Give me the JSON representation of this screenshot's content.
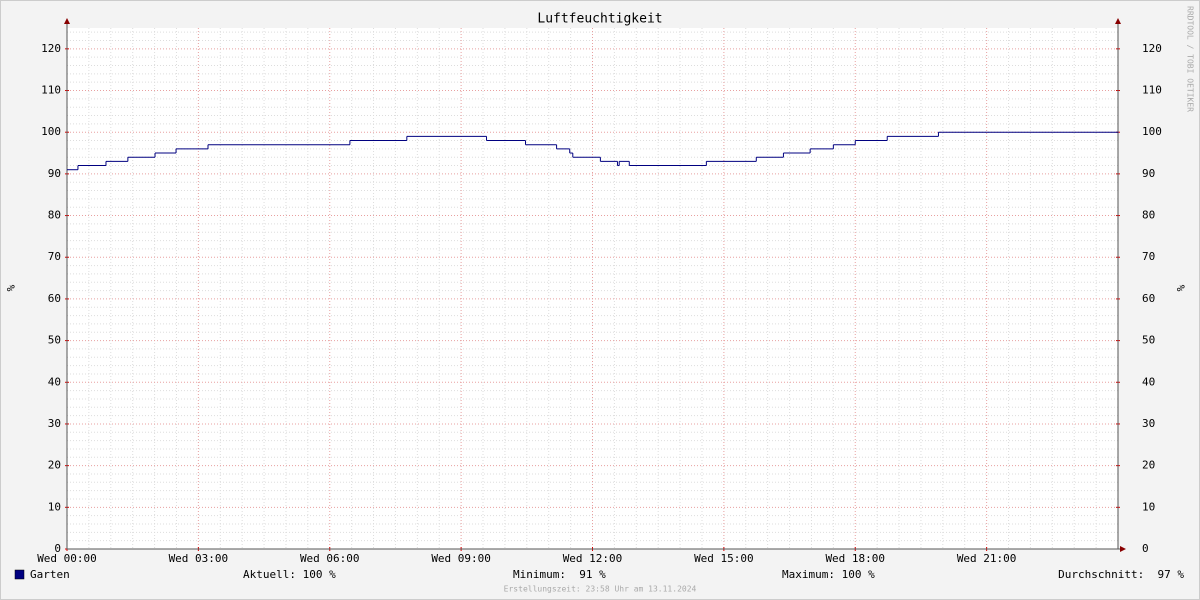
{
  "chart_data": {
    "type": "line",
    "title": "Luftfeuchtigkeit",
    "y_label": "%",
    "x": [
      0,
      0.25,
      0.89,
      1.39,
      2.01,
      2.49,
      3.22,
      6.46,
      7.76,
      9.58,
      10.47,
      11.18,
      11.48,
      11.55,
      12.18,
      12.57,
      12.61,
      12.84,
      14.6,
      15.74,
      16.36,
      16.97,
      17.5,
      18.0,
      18.73,
      19.9,
      24
    ],
    "series": [
      {
        "name": "Garten",
        "color": "#000080",
        "values": [
          91,
          92,
          93,
          94,
          95,
          96,
          97,
          98,
          99,
          98,
          97,
          96,
          95,
          94,
          93,
          92,
          93,
          92,
          93,
          94,
          95,
          96,
          97,
          98,
          99,
          100,
          100
        ]
      }
    ],
    "xlim": [
      0,
      24
    ],
    "xticks": [
      {
        "value": 0,
        "label": "Wed 00:00"
      },
      {
        "value": 3,
        "label": "Wed 03:00"
      },
      {
        "value": 6,
        "label": "Wed 06:00"
      },
      {
        "value": 9,
        "label": "Wed 09:00"
      },
      {
        "value": 12,
        "label": "Wed 12:00"
      },
      {
        "value": 15,
        "label": "Wed 15:00"
      },
      {
        "value": 18,
        "label": "Wed 18:00"
      },
      {
        "value": 21,
        "label": "Wed 21:00"
      }
    ],
    "ylim": [
      0,
      125
    ],
    "yticks": [
      0,
      10,
      20,
      30,
      40,
      50,
      60,
      70,
      80,
      90,
      100,
      110,
      120
    ],
    "grid": true,
    "stats": [
      "Aktuell: 100 %",
      "Minimum:  91 %",
      "Maximum: 100 %",
      "Durchschnitt:  97 %"
    ],
    "footer": "Erstellungszeit: 23:58 Uhr am 13.11.2024",
    "watermark": "RRDTOOL / TOBI OETIKER"
  }
}
